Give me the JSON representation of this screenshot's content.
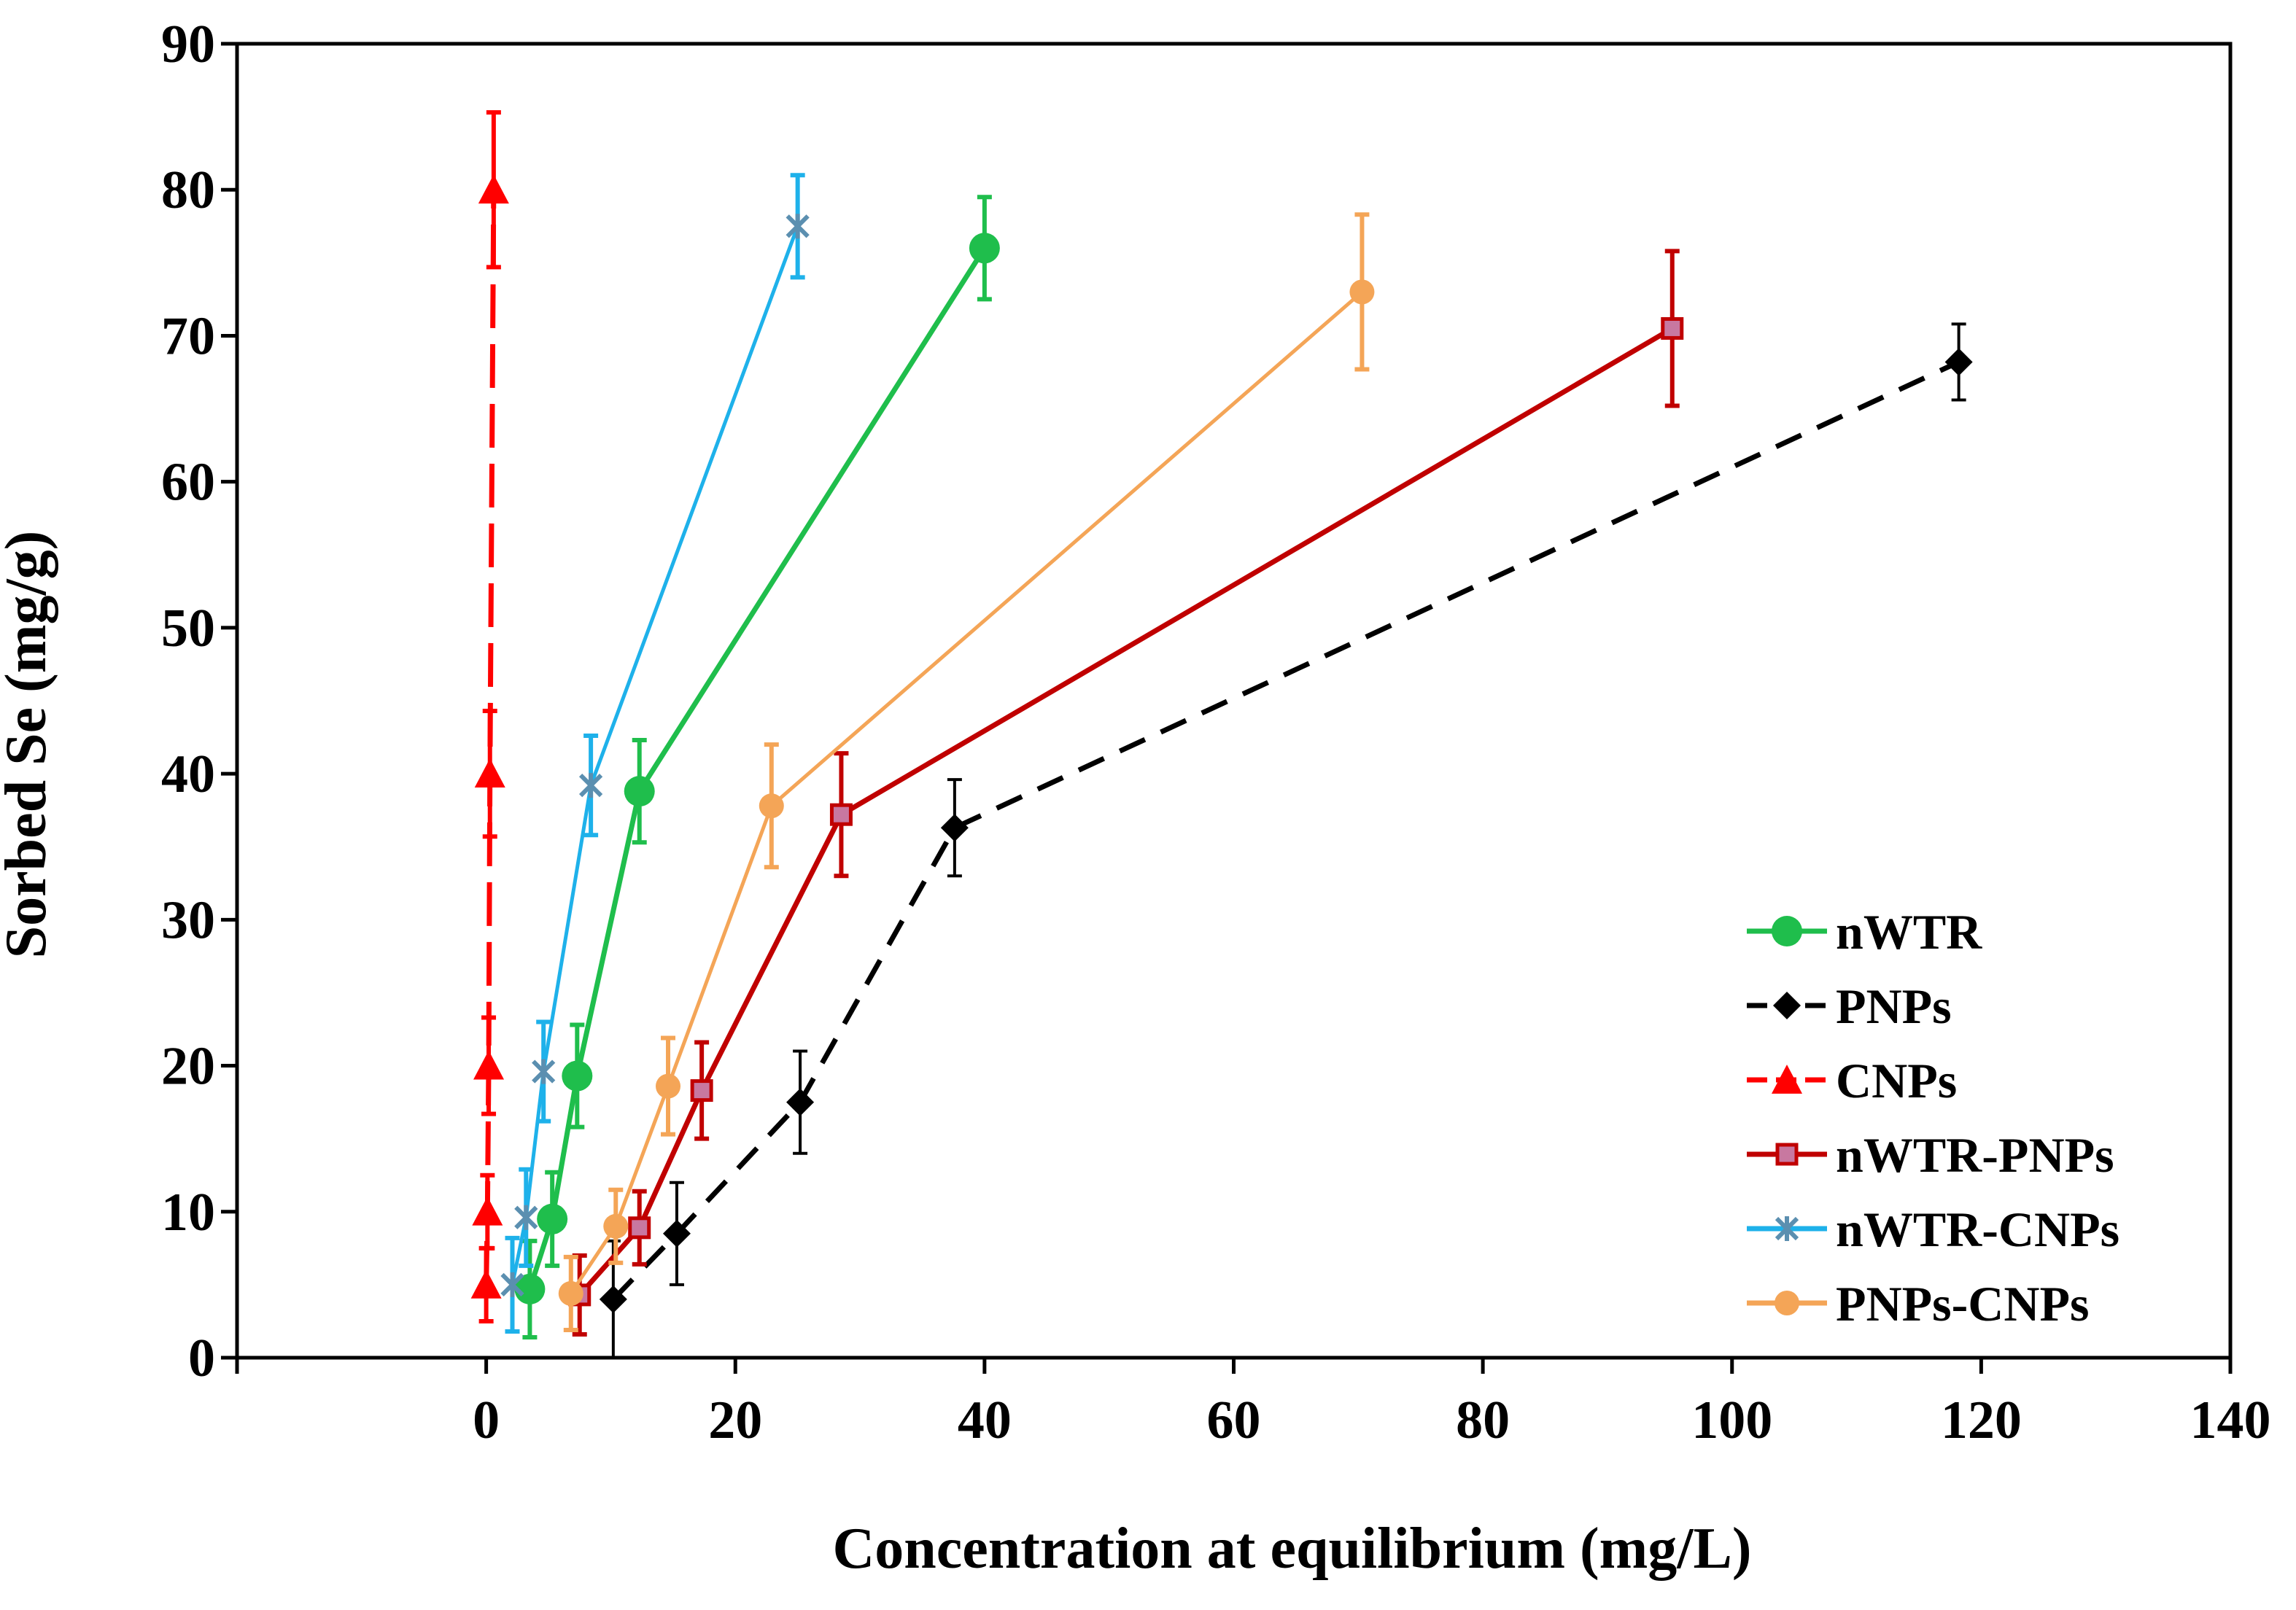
{
  "chart_data": {
    "type": "scatter",
    "xlabel": "Concentration at equilibrium (mg/L)",
    "ylabel": "Sorbed Se (mg/g)",
    "xlim": [
      -20,
      140
    ],
    "ylim": [
      0,
      90
    ],
    "x_ticks": [
      "0",
      "20",
      "40",
      "60",
      "80",
      "100",
      "120",
      "140"
    ],
    "y_ticks": [
      "0",
      "10",
      "20",
      "30",
      "40",
      "50",
      "60",
      "70",
      "80",
      "90"
    ],
    "grid": false,
    "legend_position": "bottom-right",
    "series": [
      {
        "name": "nWTR",
        "color": "#1fbe4c",
        "line": "solid",
        "marker": "circle",
        "points": [
          {
            "x": 3.5,
            "y": 4.7,
            "err": 3.3
          },
          {
            "x": 5.3,
            "y": 9.5,
            "err": 3.2
          },
          {
            "x": 7.3,
            "y": 19.3,
            "err": 3.5
          },
          {
            "x": 12.3,
            "y": 38.8,
            "err": 3.5
          },
          {
            "x": 40.0,
            "y": 76.0,
            "err": 3.5
          }
        ]
      },
      {
        "name": "PNPs",
        "color": "#000000",
        "line": "dashed",
        "marker": "diamond",
        "points": [
          {
            "x": 10.2,
            "y": 4.0,
            "err": 4.0
          },
          {
            "x": 15.3,
            "y": 8.5,
            "err": 3.5
          },
          {
            "x": 25.2,
            "y": 17.5,
            "err": 3.5
          },
          {
            "x": 37.6,
            "y": 36.3,
            "err": 3.3
          },
          {
            "x": 118.2,
            "y": 68.2,
            "err": 2.6
          }
        ]
      },
      {
        "name": "CNPs",
        "color": "#ff0000",
        "line": "dashed",
        "marker": "triangle",
        "points": [
          {
            "x": 0.0,
            "y": 5.0,
            "err": 2.5
          },
          {
            "x": 0.1,
            "y": 10.0,
            "err": 2.5
          },
          {
            "x": 0.2,
            "y": 20.0,
            "err": 3.3
          },
          {
            "x": 0.3,
            "y": 40.0,
            "err": 4.3
          },
          {
            "x": 0.6,
            "y": 80.0,
            "err": 5.3
          }
        ]
      },
      {
        "name": "nWTR-PNPs",
        "color": "#c00000",
        "line": "solid",
        "marker": "square",
        "points": [
          {
            "x": 7.5,
            "y": 4.3,
            "err": 2.7
          },
          {
            "x": 12.3,
            "y": 8.9,
            "err": 2.5
          },
          {
            "x": 17.3,
            "y": 18.3,
            "err": 3.3
          },
          {
            "x": 28.5,
            "y": 37.2,
            "err": 4.2
          },
          {
            "x": 95.2,
            "y": 70.5,
            "err": 5.3
          }
        ]
      },
      {
        "name": "nWTR-CNPs",
        "color": "#1eb1ea",
        "line": "solid",
        "marker": "star",
        "points": [
          {
            "x": 2.1,
            "y": 5.0,
            "err": 3.2
          },
          {
            "x": 3.2,
            "y": 9.6,
            "err": 3.3
          },
          {
            "x": 4.6,
            "y": 19.6,
            "err": 3.4
          },
          {
            "x": 8.4,
            "y": 39.2,
            "err": 3.4
          },
          {
            "x": 25.0,
            "y": 77.5,
            "err": 3.5
          }
        ]
      },
      {
        "name": "PNPs-CNPs",
        "color": "#f4a557",
        "line": "solid",
        "marker": "circle-small",
        "points": [
          {
            "x": 6.8,
            "y": 4.4,
            "err": 2.5
          },
          {
            "x": 10.4,
            "y": 9.0,
            "err": 2.5
          },
          {
            "x": 14.6,
            "y": 18.6,
            "err": 3.3
          },
          {
            "x": 22.9,
            "y": 37.8,
            "err": 4.2
          },
          {
            "x": 70.3,
            "y": 73.0,
            "err": 5.3
          }
        ]
      }
    ]
  }
}
